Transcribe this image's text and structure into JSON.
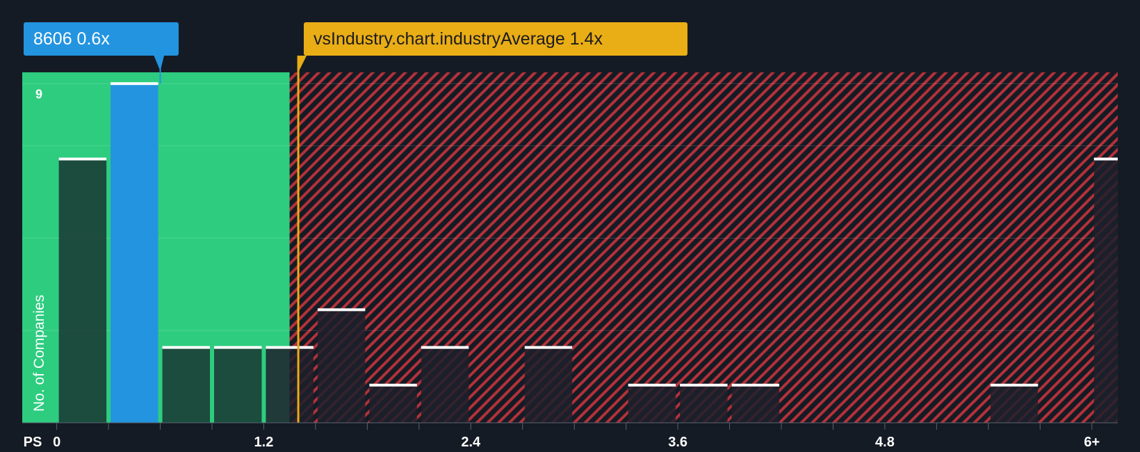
{
  "company_label": "8606 0.6x",
  "industry_label": "vsIndustry.chart.industryAverage 1.4x",
  "colors": {
    "background": "#151b24",
    "fair_zone": "#2ecc7f",
    "overvalued_zone": "#c0392b",
    "company_bar": "#2394e0",
    "industry_line": "#e9ad16"
  },
  "chart_data": {
    "type": "bar",
    "title": "",
    "xlabel": "PS",
    "ylabel": "No. of Companies",
    "x_ticks": [
      "0",
      "1.2",
      "2.4",
      "3.6",
      "4.8",
      "6+"
    ],
    "x_tick_values": [
      0,
      1.2,
      2.4,
      3.6,
      4.8,
      6.0
    ],
    "y_ticks": [
      "9"
    ],
    "y_tick_values": [
      9
    ],
    "xlim": [
      -0.2,
      6.15
    ],
    "ylim": [
      0,
      9.3
    ],
    "bin_width": 0.3,
    "grid": true,
    "company_value": 0.6,
    "industry_average": 1.4,
    "fair_value_threshold": 1.35,
    "bins": [
      {
        "x": 0.15,
        "count": 7,
        "highlight": false
      },
      {
        "x": 0.45,
        "count": 9,
        "highlight": true
      },
      {
        "x": 0.75,
        "count": 2,
        "highlight": false
      },
      {
        "x": 1.05,
        "count": 2,
        "highlight": false
      },
      {
        "x": 1.35,
        "count": 2,
        "highlight": false
      },
      {
        "x": 1.65,
        "count": 3,
        "highlight": false
      },
      {
        "x": 1.95,
        "count": 1,
        "highlight": false
      },
      {
        "x": 2.25,
        "count": 2,
        "highlight": false
      },
      {
        "x": 2.85,
        "count": 2,
        "highlight": false
      },
      {
        "x": 3.45,
        "count": 1,
        "highlight": false
      },
      {
        "x": 3.75,
        "count": 1,
        "highlight": false
      },
      {
        "x": 4.05,
        "count": 1,
        "highlight": false
      },
      {
        "x": 5.55,
        "count": 1,
        "highlight": false
      },
      {
        "x": 6.15,
        "count": 7,
        "highlight": false
      }
    ]
  }
}
